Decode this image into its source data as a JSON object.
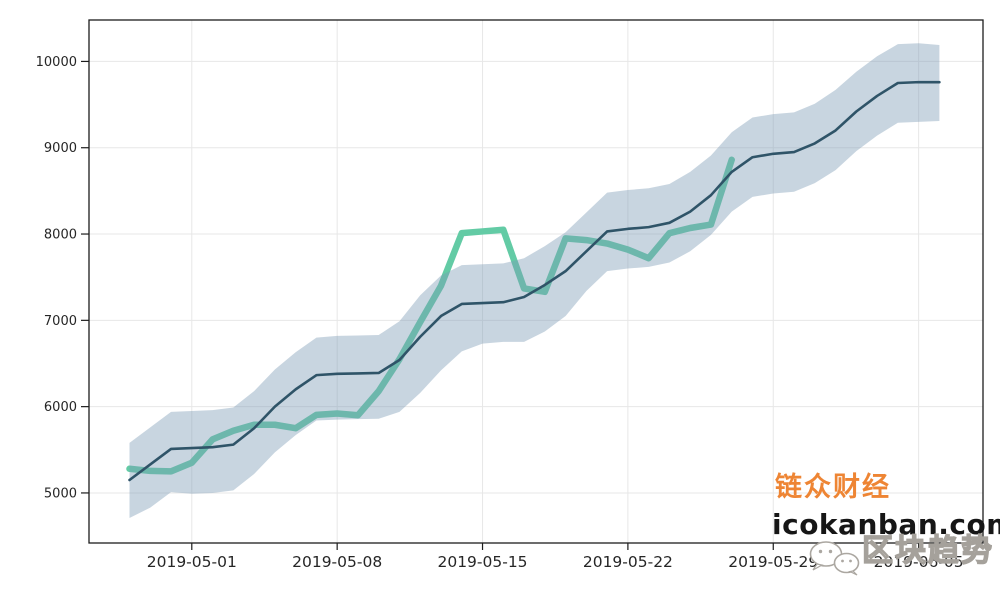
{
  "figure": {
    "background_color": "#ffffff",
    "axis_style": {
      "frame_color": "#1c1c1c",
      "grid_color": "#e7e7e7",
      "tick_label_color": "#262626",
      "x_tick_font_size": 15.5,
      "y_tick_font_size": 13
    }
  },
  "chart_data": {
    "type": "line",
    "title": "",
    "xlabel": "",
    "ylabel": "",
    "grid": true,
    "legend": "none",
    "description": "Price with forecast line and uncertainty band, actual price line ends 2019-05-27 with spike to ~8860, forecast extends to 2019-06-06 reaching ~9760",
    "dates": [
      "2019-04-28",
      "2019-04-29",
      "2019-04-30",
      "2019-05-01",
      "2019-05-02",
      "2019-05-03",
      "2019-05-04",
      "2019-05-05",
      "2019-05-06",
      "2019-05-07",
      "2019-05-08",
      "2019-05-09",
      "2019-05-10",
      "2019-05-11",
      "2019-05-12",
      "2019-05-13",
      "2019-05-14",
      "2019-05-15",
      "2019-05-16",
      "2019-05-17",
      "2019-05-18",
      "2019-05-19",
      "2019-05-20",
      "2019-05-21",
      "2019-05-22",
      "2019-05-23",
      "2019-05-24",
      "2019-05-25",
      "2019-05-26",
      "2019-05-27",
      "2019-05-28",
      "2019-05-29",
      "2019-05-30",
      "2019-05-31",
      "2019-06-01",
      "2019-06-02",
      "2019-06-03",
      "2019-06-04",
      "2019-06-05",
      "2019-06-06"
    ],
    "x_ticks": {
      "days": [
        3,
        10,
        17,
        24,
        31,
        38
      ],
      "labels": [
        "2019-05-01",
        "2019-05-08",
        "2019-05-15",
        "2019-05-22",
        "2019-05-29",
        "2019-06-05"
      ]
    },
    "y_ticks": [
      5000,
      6000,
      7000,
      8000,
      9000,
      10000
    ],
    "ylim": [
      4420,
      10480
    ],
    "xlim_days": [
      -1.95,
      41.1
    ],
    "series": [
      {
        "name": "actual-price",
        "color": "#63cba5",
        "line_width": 6.5,
        "start_day": 0,
        "values": [
          5280,
          5255,
          5250,
          5350,
          5620,
          5720,
          5790,
          5790,
          5750,
          5905,
          5920,
          5900,
          6180,
          6550,
          6980,
          7400,
          8010,
          8030,
          8050,
          7370,
          7330,
          7950,
          7930,
          7890,
          7820,
          7720,
          8010,
          8070,
          8110,
          8860
        ]
      },
      {
        "name": "forecast",
        "color": "#2f5468",
        "line_width": 2.6,
        "start_day": 0,
        "values": [
          5150,
          5330,
          5510,
          5520,
          5530,
          5560,
          5750,
          6000,
          6200,
          6365,
          6380,
          6385,
          6390,
          6540,
          6810,
          7050,
          7190,
          7200,
          7210,
          7270,
          7410,
          7570,
          7800,
          8030,
          8060,
          8080,
          8130,
          8260,
          8450,
          8720,
          8890,
          8930,
          8950,
          9050,
          9200,
          9420,
          9600,
          9750,
          9760,
          9760
        ]
      }
    ],
    "uncertainty_band": {
      "name": "forecast-uncertainty",
      "fill_color": "#7c9cb4",
      "fill_opacity": 0.42,
      "start_day": 0,
      "upper": [
        5580,
        5760,
        5940,
        5950,
        5960,
        5990,
        6180,
        6430,
        6630,
        6800,
        6820,
        6825,
        6830,
        6990,
        7290,
        7520,
        7640,
        7650,
        7660,
        7720,
        7860,
        8020,
        8250,
        8480,
        8510,
        8530,
        8580,
        8720,
        8910,
        9180,
        9350,
        9390,
        9410,
        9510,
        9670,
        9880,
        10060,
        10200,
        10210,
        10190
      ],
      "lower": [
        4710,
        4830,
        5010,
        4990,
        5000,
        5030,
        5220,
        5470,
        5670,
        5840,
        5850,
        5855,
        5860,
        5940,
        6160,
        6420,
        6640,
        6730,
        6750,
        6750,
        6870,
        7050,
        7340,
        7570,
        7600,
        7620,
        7670,
        7800,
        7990,
        8260,
        8430,
        8470,
        8490,
        8590,
        8740,
        8960,
        9140,
        9290,
        9300,
        9310
      ]
    }
  },
  "watermarks": {
    "brand_cn": {
      "text": "链众财经",
      "color": "#ee8534"
    },
    "brand_url": {
      "text": "icokanban.com",
      "color": "#161616"
    },
    "wechat_account": {
      "text": "区块趋势",
      "color": "#a5a19b"
    }
  }
}
